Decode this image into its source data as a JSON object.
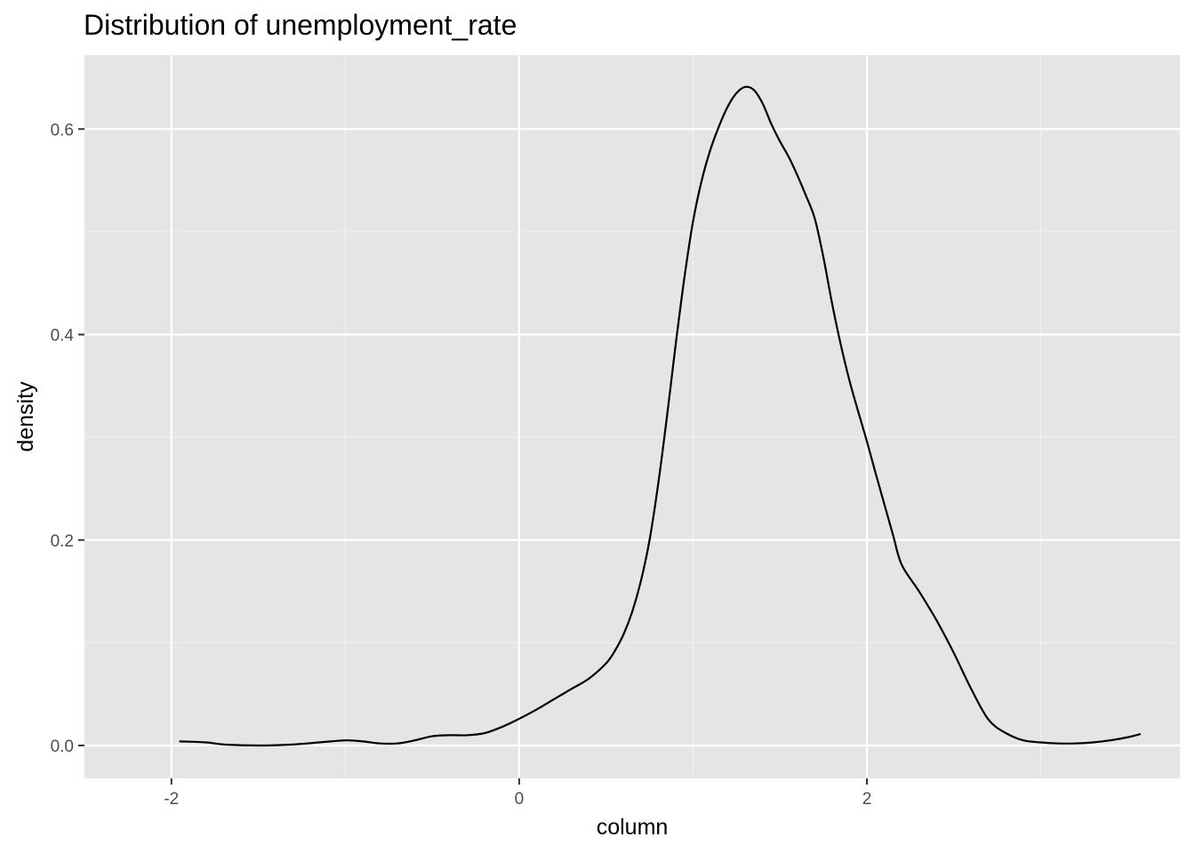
{
  "chart_data": {
    "type": "line",
    "title": "Distribution of unemployment_rate",
    "xlabel": "column",
    "ylabel": "density",
    "xlim": [
      -2.5,
      3.8
    ],
    "ylim": [
      -0.032,
      0.672
    ],
    "x_ticks": [
      -2,
      0,
      2
    ],
    "x_tick_labels": [
      "-2",
      "0",
      "2"
    ],
    "x_minor_ticks": [
      -1,
      1,
      3
    ],
    "y_ticks": [
      0.0,
      0.2,
      0.4,
      0.6
    ],
    "y_tick_labels": [
      "0.0",
      "0.2",
      "0.4",
      "0.6"
    ],
    "y_minor_ticks": [
      0.1,
      0.3,
      0.5
    ],
    "grid": true,
    "legend": "none",
    "series": [
      {
        "x": [
          -1.95,
          -1.8,
          -1.7,
          -1.5,
          -1.3,
          -1.15,
          -1.0,
          -0.9,
          -0.8,
          -0.7,
          -0.6,
          -0.5,
          -0.4,
          -0.3,
          -0.2,
          -0.1,
          0.0,
          0.1,
          0.2,
          0.3,
          0.4,
          0.5,
          0.55,
          0.6,
          0.65,
          0.7,
          0.75,
          0.8,
          0.85,
          0.9,
          0.95,
          1.0,
          1.05,
          1.1,
          1.15,
          1.2,
          1.25,
          1.3,
          1.35,
          1.4,
          1.45,
          1.5,
          1.55,
          1.6,
          1.65,
          1.7,
          1.75,
          1.8,
          1.85,
          1.9,
          1.95,
          2.0,
          2.05,
          2.1,
          2.15,
          2.2,
          2.3,
          2.4,
          2.5,
          2.6,
          2.7,
          2.8,
          2.9,
          3.0,
          3.1,
          3.2,
          3.3,
          3.4,
          3.5,
          3.57
        ],
        "y": [
          0.004,
          0.003,
          0.001,
          0.0,
          0.001,
          0.003,
          0.005,
          0.004,
          0.002,
          0.002,
          0.005,
          0.009,
          0.01,
          0.01,
          0.012,
          0.018,
          0.026,
          0.035,
          0.045,
          0.055,
          0.065,
          0.08,
          0.092,
          0.108,
          0.13,
          0.16,
          0.2,
          0.255,
          0.32,
          0.39,
          0.455,
          0.51,
          0.55,
          0.58,
          0.603,
          0.622,
          0.635,
          0.641,
          0.638,
          0.625,
          0.605,
          0.588,
          0.573,
          0.555,
          0.535,
          0.513,
          0.475,
          0.43,
          0.39,
          0.355,
          0.325,
          0.296,
          0.265,
          0.235,
          0.205,
          0.176,
          0.15,
          0.122,
          0.09,
          0.055,
          0.025,
          0.012,
          0.005,
          0.003,
          0.002,
          0.002,
          0.003,
          0.005,
          0.008,
          0.011
        ]
      }
    ]
  }
}
